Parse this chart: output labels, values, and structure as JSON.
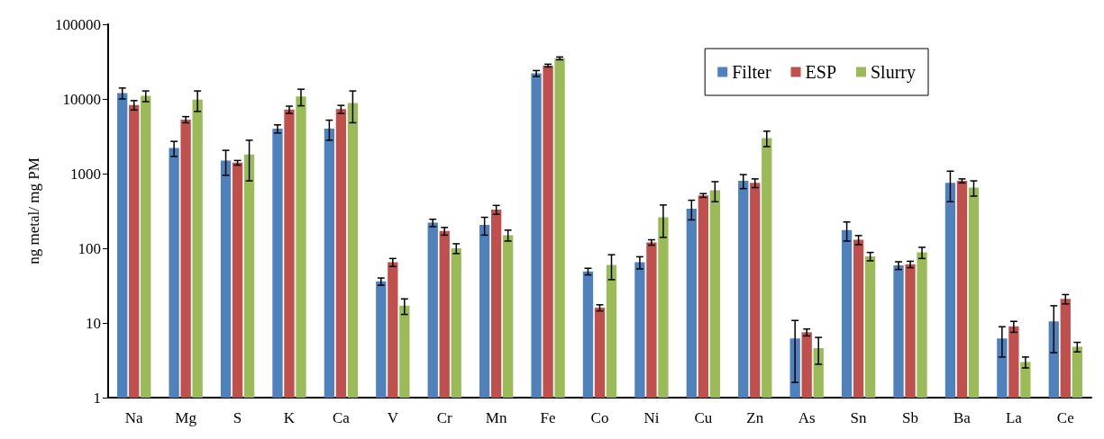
{
  "chart_data": {
    "type": "bar",
    "ylabel": "ng metal/ mg PM",
    "categories": [
      "Na",
      "Mg",
      "S",
      "K",
      "Ca",
      "V",
      "Cr",
      "Mn",
      "Fe",
      "Co",
      "Ni",
      "Cu",
      "Zn",
      "As",
      "Sn",
      "Sb",
      "Ba",
      "La",
      "Ce"
    ],
    "series": [
      {
        "name": "Filter",
        "color": "#4f81bd",
        "values": [
          12000,
          2200,
          1500,
          4000,
          4000,
          36,
          220,
          205,
          22000,
          49,
          65,
          340,
          800,
          6.2,
          175,
          59,
          750,
          6.2,
          10.5
        ],
        "errors": [
          2000,
          500,
          550,
          500,
          1200,
          4,
          25,
          55,
          2000,
          5,
          12,
          100,
          170,
          4.6,
          50,
          7,
          330,
          2.7,
          6.5
        ]
      },
      {
        "name": "ESP",
        "color": "#c0504d",
        "values": [
          8300,
          5300,
          1400,
          7200,
          7300,
          65,
          170,
          330,
          28000,
          16,
          120,
          510,
          750,
          7.5,
          130,
          61,
          800,
          9,
          21
        ],
        "errors": [
          1200,
          500,
          100,
          800,
          900,
          8,
          20,
          45,
          1200,
          1.5,
          10,
          30,
          100,
          0.8,
          18,
          6,
          50,
          1.5,
          3
        ]
      },
      {
        "name": "Slurry",
        "color": "#9bbb59",
        "values": [
          11000,
          9800,
          1800,
          10800,
          8800,
          17,
          100,
          150,
          35000,
          60,
          260,
          600,
          3000,
          4.6,
          78,
          88,
          650,
          3,
          4.8
        ],
        "errors": [
          1800,
          3000,
          1000,
          2700,
          4000,
          4,
          15,
          25,
          1500,
          22,
          120,
          180,
          700,
          1.8,
          10,
          15,
          150,
          0.5,
          0.7
        ]
      }
    ],
    "ylim": [
      1,
      100000
    ],
    "yticks": [
      1,
      10,
      100,
      1000,
      10000,
      100000
    ],
    "log": true,
    "grid": false,
    "legend": "top right"
  }
}
